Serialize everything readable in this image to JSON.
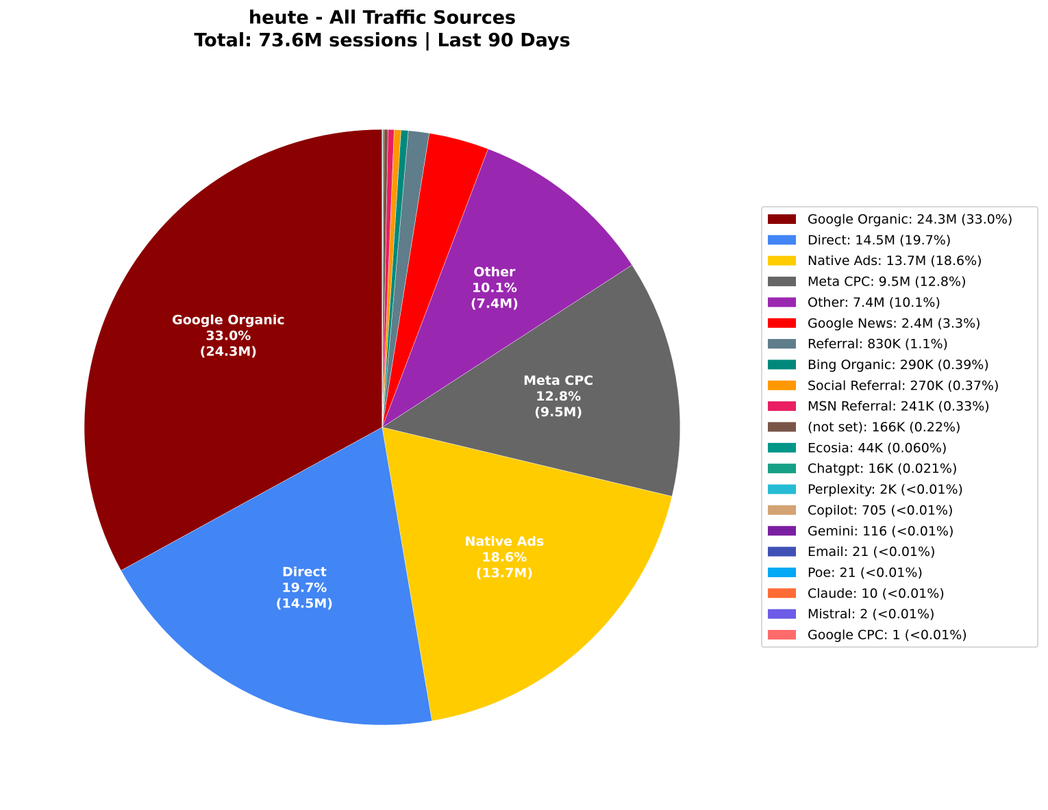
{
  "chart_data": {
    "type": "pie",
    "title": "heute - All Traffic Sources",
    "subtitle": "Total: 73.6M sessions | Last 90 Days",
    "categories": [
      "Google Organic",
      "Direct",
      "Native Ads",
      "Meta CPC",
      "Other",
      "Google News",
      "Referral",
      "Bing Organic",
      "Social Referral",
      "MSN Referral",
      "(not set)",
      "Ecosia",
      "Chatgpt",
      "Perplexity",
      "Copilot",
      "Gemini",
      "Email",
      "Poe",
      "Claude",
      "Mistral",
      "Google CPC"
    ],
    "values": [
      24300000,
      14500000,
      13700000,
      9500000,
      7400000,
      2400000,
      830000,
      290000,
      270000,
      241000,
      166000,
      44000,
      16000,
      2000,
      705,
      116,
      21,
      21,
      10,
      2,
      1
    ],
    "colors": [
      "#8b0000",
      "#4285f4",
      "#ffcc00",
      "#666666",
      "#9a27b0",
      "#ff0000",
      "#607d8b",
      "#00897b",
      "#ff9800",
      "#e91e63",
      "#795548",
      "#009688",
      "#16a085",
      "#26bcd4",
      "#d4a373",
      "#7b1fa2",
      "#3f51b5",
      "#03a9f4",
      "#ff6b35",
      "#6c5ce7",
      "#ff6b6b"
    ],
    "legend_labels": [
      "Google Organic: 24.3M (33.0%)",
      "Direct: 14.5M (19.7%)",
      "Native Ads: 13.7M (18.6%)",
      "Meta CPC: 9.5M (12.8%)",
      "Other: 7.4M (10.1%)",
      "Google News: 2.4M (3.3%)",
      "Referral: 830K (1.1%)",
      "Bing Organic: 290K (0.39%)",
      "Social Referral: 270K (0.37%)",
      "MSN Referral: 241K (0.33%)",
      "(not set): 166K (0.22%)",
      "Ecosia: 44K (0.060%)",
      "Chatgpt: 16K (0.021%)",
      "Perplexity: 2K (<0.01%)",
      "Copilot: 705 (<0.01%)",
      "Gemini: 116 (<0.01%)",
      "Email: 21 (<0.01%)",
      "Poe: 21 (<0.01%)",
      "Claude: 10 (<0.01%)",
      "Mistral: 2 (<0.01%)",
      "Google CPC: 1 (<0.01%)"
    ],
    "slice_labels": [
      [
        "33.0%",
        "(24.3M)"
      ],
      [
        "19.7%",
        "(14.5M)"
      ],
      [
        "18.6%",
        "(13.7M)"
      ],
      [
        "12.8%",
        "(9.5M)"
      ],
      [
        "10.1%",
        "(7.4M)"
      ],
      null,
      null,
      null,
      null,
      null,
      null,
      null,
      null,
      null,
      null,
      null,
      null,
      null,
      null,
      null,
      null
    ],
    "legend_position": "right"
  }
}
